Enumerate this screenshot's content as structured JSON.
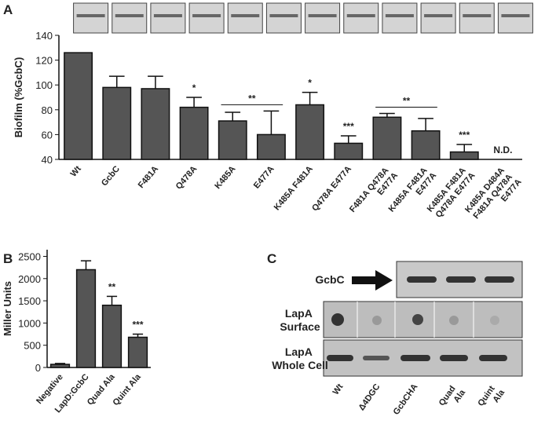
{
  "panels": [
    "A",
    "B",
    "C"
  ],
  "chart_data": [
    {
      "type": "bar",
      "ylabel": "Biofilm (%GcbC)",
      "categories": [
        "Wt",
        "GcbC",
        "F481A",
        "Q478A",
        "K485A",
        "E477A",
        "K485A F481A",
        "Q478A E477A",
        "F481A Q478A E477A",
        "K485A F481A E477A",
        "K485A F481A Q478A E477A",
        "K485A D484A F481A Q478A E477A"
      ],
      "values": [
        126,
        98,
        97,
        82,
        71,
        60,
        84,
        53,
        74,
        63,
        46,
        null
      ],
      "errors": [
        0,
        9,
        10,
        8,
        7,
        19,
        10,
        6,
        3,
        10,
        6,
        null
      ],
      "color": "#555555",
      "ylim": [
        40,
        140
      ],
      "yticks": [
        40,
        60,
        80,
        100,
        120,
        140
      ],
      "annotations": [
        {
          "text": "*",
          "span": [
            3,
            3
          ]
        },
        {
          "text": "**",
          "span": [
            4,
            5
          ]
        },
        {
          "text": "*",
          "span": [
            6,
            6
          ]
        },
        {
          "text": "***",
          "span": [
            7,
            7
          ]
        },
        {
          "text": "**",
          "span": [
            8,
            9
          ]
        },
        {
          "text": "***",
          "span": [
            10,
            10
          ]
        },
        {
          "text": "N.D.",
          "span": [
            11,
            11
          ]
        }
      ]
    },
    {
      "type": "bar",
      "ylabel": "Miller Units",
      "categories": [
        "Negative",
        "LapD:GcbC",
        "Quad Ala",
        "Quint Ala"
      ],
      "values": [
        70,
        2200,
        1400,
        680
      ],
      "errors": [
        20,
        200,
        200,
        70
      ],
      "color": "#555555",
      "ylim": [
        0,
        2650
      ],
      "yticks": [
        0,
        500,
        1000,
        1500,
        2000,
        2500
      ],
      "annotations": [
        {
          "text": "**",
          "span": [
            2,
            2
          ]
        },
        {
          "text": "***",
          "span": [
            3,
            3
          ]
        }
      ]
    }
  ],
  "blot": {
    "rows": [
      "GcbC",
      "LapA Surface",
      "LapA Whole Cell"
    ],
    "lanes": [
      "Wt",
      "Δ4DGC",
      "GcbCHA",
      "Quad Ala",
      "Quint Ala"
    ]
  }
}
